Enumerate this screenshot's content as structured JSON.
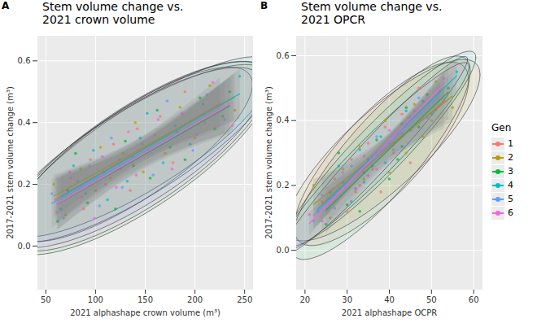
{
  "chart_data": [
    {
      "type": "scatter",
      "title": "Stem volume change vs.\n2021 crown volume",
      "annotations": [
        "A"
      ],
      "x_label": "2021 alphashape crown volume (m³)",
      "y_label": "2017-2021 stem volume change (m³)",
      "xlim": [
        42,
        258
      ],
      "xticks": [
        50,
        100,
        150,
        200,
        250
      ],
      "ylim": [
        -0.14,
        0.68
      ],
      "yticks": [
        {
          "value": 0,
          "label": "0.0"
        },
        0.2,
        0.4,
        0.6
      ],
      "grid": true,
      "series": [
        {
          "name": "1",
          "color": "#F8766D",
          "x": [
            60,
            75,
            88,
            95,
            110,
            118,
            125,
            135,
            142,
            150,
            165,
            178,
            190,
            210,
            225
          ],
          "values": [
            0.15,
            0.22,
            0.12,
            0.28,
            0.2,
            0.33,
            0.25,
            0.18,
            0.38,
            0.3,
            0.42,
            0.27,
            0.5,
            0.4,
            0.46
          ]
        },
        {
          "name": "2",
          "color": "#B79F00",
          "x": [
            58,
            70,
            85,
            100,
            105,
            115,
            128,
            140,
            148,
            160,
            170,
            185,
            200,
            215,
            240
          ],
          "values": [
            0.2,
            0.1,
            0.25,
            0.18,
            0.32,
            0.22,
            0.3,
            0.4,
            0.24,
            0.36,
            0.3,
            0.45,
            0.35,
            0.52,
            0.44
          ]
        },
        {
          "name": "3",
          "color": "#00BA38",
          "x": [
            62,
            72,
            80,
            92,
            108,
            120,
            130,
            138,
            155,
            162,
            175,
            190,
            205,
            220,
            235
          ],
          "values": [
            0.08,
            0.18,
            0.3,
            0.14,
            0.24,
            0.12,
            0.34,
            0.26,
            0.22,
            0.44,
            0.32,
            0.28,
            0.48,
            0.38,
            0.5
          ]
        },
        {
          "name": "4",
          "color": "#00BFC4",
          "x": [
            65,
            78,
            90,
            98,
            112,
            124,
            132,
            145,
            152,
            168,
            180,
            195,
            208,
            228,
            245
          ],
          "values": [
            0.12,
            0.26,
            0.17,
            0.31,
            0.15,
            0.28,
            0.21,
            0.35,
            0.43,
            0.27,
            0.39,
            0.33,
            0.46,
            0.42,
            0.55
          ]
        },
        {
          "name": "5",
          "color": "#619CFF",
          "x": [
            56,
            68,
            82,
            94,
            104,
            116,
            127,
            137,
            147,
            158,
            172,
            182,
            198,
            212,
            230
          ],
          "values": [
            0.17,
            0.09,
            0.21,
            0.26,
            0.13,
            0.35,
            0.19,
            0.29,
            0.33,
            0.23,
            0.47,
            0.37,
            0.31,
            0.49,
            0.41
          ]
        },
        {
          "name": "6",
          "color": "#F564E3",
          "x": [
            61,
            74,
            86,
            99,
            107,
            121,
            133,
            141,
            153,
            163,
            177,
            187,
            202,
            218,
            238
          ],
          "values": [
            0.11,
            0.24,
            0.16,
            0.09,
            0.29,
            0.19,
            0.37,
            0.23,
            0.31,
            0.41,
            0.25,
            0.43,
            0.36,
            0.53,
            0.39
          ]
        }
      ]
    },
    {
      "type": "scatter",
      "title": "Stem volume change vs.\n2021 OPCR",
      "annotations": [
        "B"
      ],
      "x_label": "2021 alphashape OCPR",
      "y_label": "2017-2021 stem volume change (m³)",
      "xlim": [
        18,
        62
      ],
      "xticks": [
        20,
        30,
        40,
        50,
        60
      ],
      "ylim": [
        -0.12,
        0.66
      ],
      "yticks": [
        {
          "value": 0,
          "label": "0.0"
        },
        0.2,
        0.4,
        0.6
      ],
      "grid": true,
      "legend": "right",
      "legend_title": "Gen",
      "series": [
        {
          "name": "1",
          "color": "#F8766D",
          "x": [
            24,
            27,
            30,
            31,
            33,
            35,
            36,
            38,
            39,
            41,
            43,
            45,
            47,
            50,
            53
          ],
          "values": [
            0.15,
            0.22,
            0.12,
            0.28,
            0.2,
            0.33,
            0.25,
            0.18,
            0.38,
            0.3,
            0.42,
            0.27,
            0.5,
            0.4,
            0.46
          ]
        },
        {
          "name": "2",
          "color": "#B79F00",
          "x": [
            22,
            26,
            29,
            32,
            33,
            34,
            37,
            39,
            40,
            42,
            44,
            46,
            48,
            51,
            55
          ],
          "values": [
            0.2,
            0.1,
            0.25,
            0.18,
            0.32,
            0.22,
            0.3,
            0.4,
            0.24,
            0.36,
            0.3,
            0.45,
            0.35,
            0.52,
            0.44
          ]
        },
        {
          "name": "3",
          "color": "#00BA38",
          "x": [
            25,
            26,
            28,
            30,
            34,
            33,
            37,
            36,
            40,
            44,
            43,
            42,
            49,
            47,
            54
          ],
          "values": [
            0.08,
            0.18,
            0.3,
            0.14,
            0.24,
            0.12,
            0.34,
            0.26,
            0.22,
            0.44,
            0.32,
            0.28,
            0.48,
            0.38,
            0.5
          ]
        },
        {
          "name": "4",
          "color": "#00BFC4",
          "x": [
            23,
            28,
            27,
            33,
            31,
            35,
            34,
            38,
            44,
            39,
            43,
            41,
            48,
            50,
            56
          ],
          "values": [
            0.12,
            0.26,
            0.17,
            0.31,
            0.15,
            0.28,
            0.21,
            0.35,
            0.43,
            0.27,
            0.39,
            0.33,
            0.46,
            0.42,
            0.55
          ]
        },
        {
          "name": "5",
          "color": "#619CFF",
          "x": [
            24,
            22,
            29,
            31,
            27,
            37,
            32,
            36,
            40,
            35,
            47,
            45,
            41,
            52,
            49
          ],
          "values": [
            0.17,
            0.09,
            0.21,
            0.26,
            0.13,
            0.35,
            0.19,
            0.29,
            0.33,
            0.23,
            0.47,
            0.37,
            0.31,
            0.49,
            0.41
          ]
        },
        {
          "name": "6",
          "color": "#F564E3",
          "x": [
            21,
            29,
            26,
            24,
            34,
            32,
            40,
            35,
            38,
            45,
            37,
            46,
            43,
            53,
            44
          ],
          "values": [
            0.11,
            0.24,
            0.16,
            0.09,
            0.29,
            0.19,
            0.37,
            0.23,
            0.31,
            0.41,
            0.25,
            0.43,
            0.36,
            0.53,
            0.39
          ]
        }
      ]
    }
  ]
}
